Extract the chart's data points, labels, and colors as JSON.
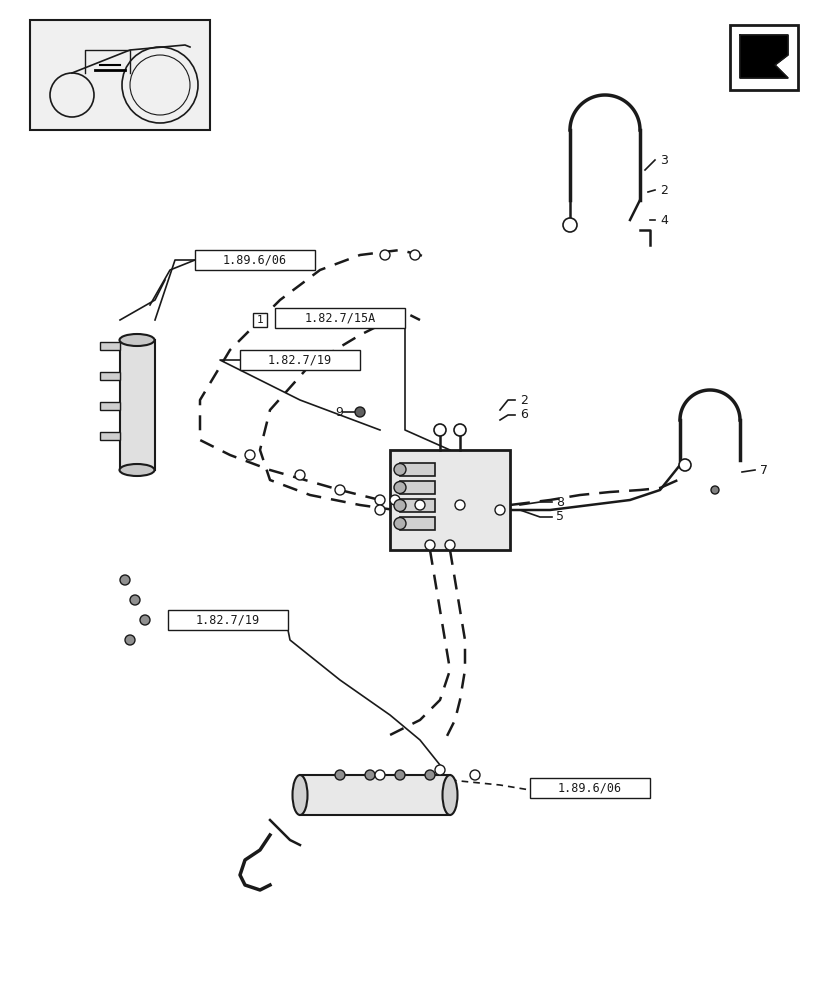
{
  "bg_color": "#ffffff",
  "line_color": "#1a1a1a",
  "label_color": "#1a1a1a",
  "labels": {
    "ref1_top": "1.89.6/06",
    "ref2_top": "1.82.7/15A",
    "ref3_left": "1.82.7/19",
    "ref4_bottom_left": "1.82.7/19",
    "ref5_bottom_right": "1.89.6/06",
    "num1": "1",
    "num2": "2",
    "num3": "3",
    "num4": "4",
    "num5": "5",
    "num6": "6",
    "num7": "7",
    "num8": "8",
    "num9": "9"
  },
  "figsize": [
    8.28,
    10.0
  ],
  "dpi": 100
}
